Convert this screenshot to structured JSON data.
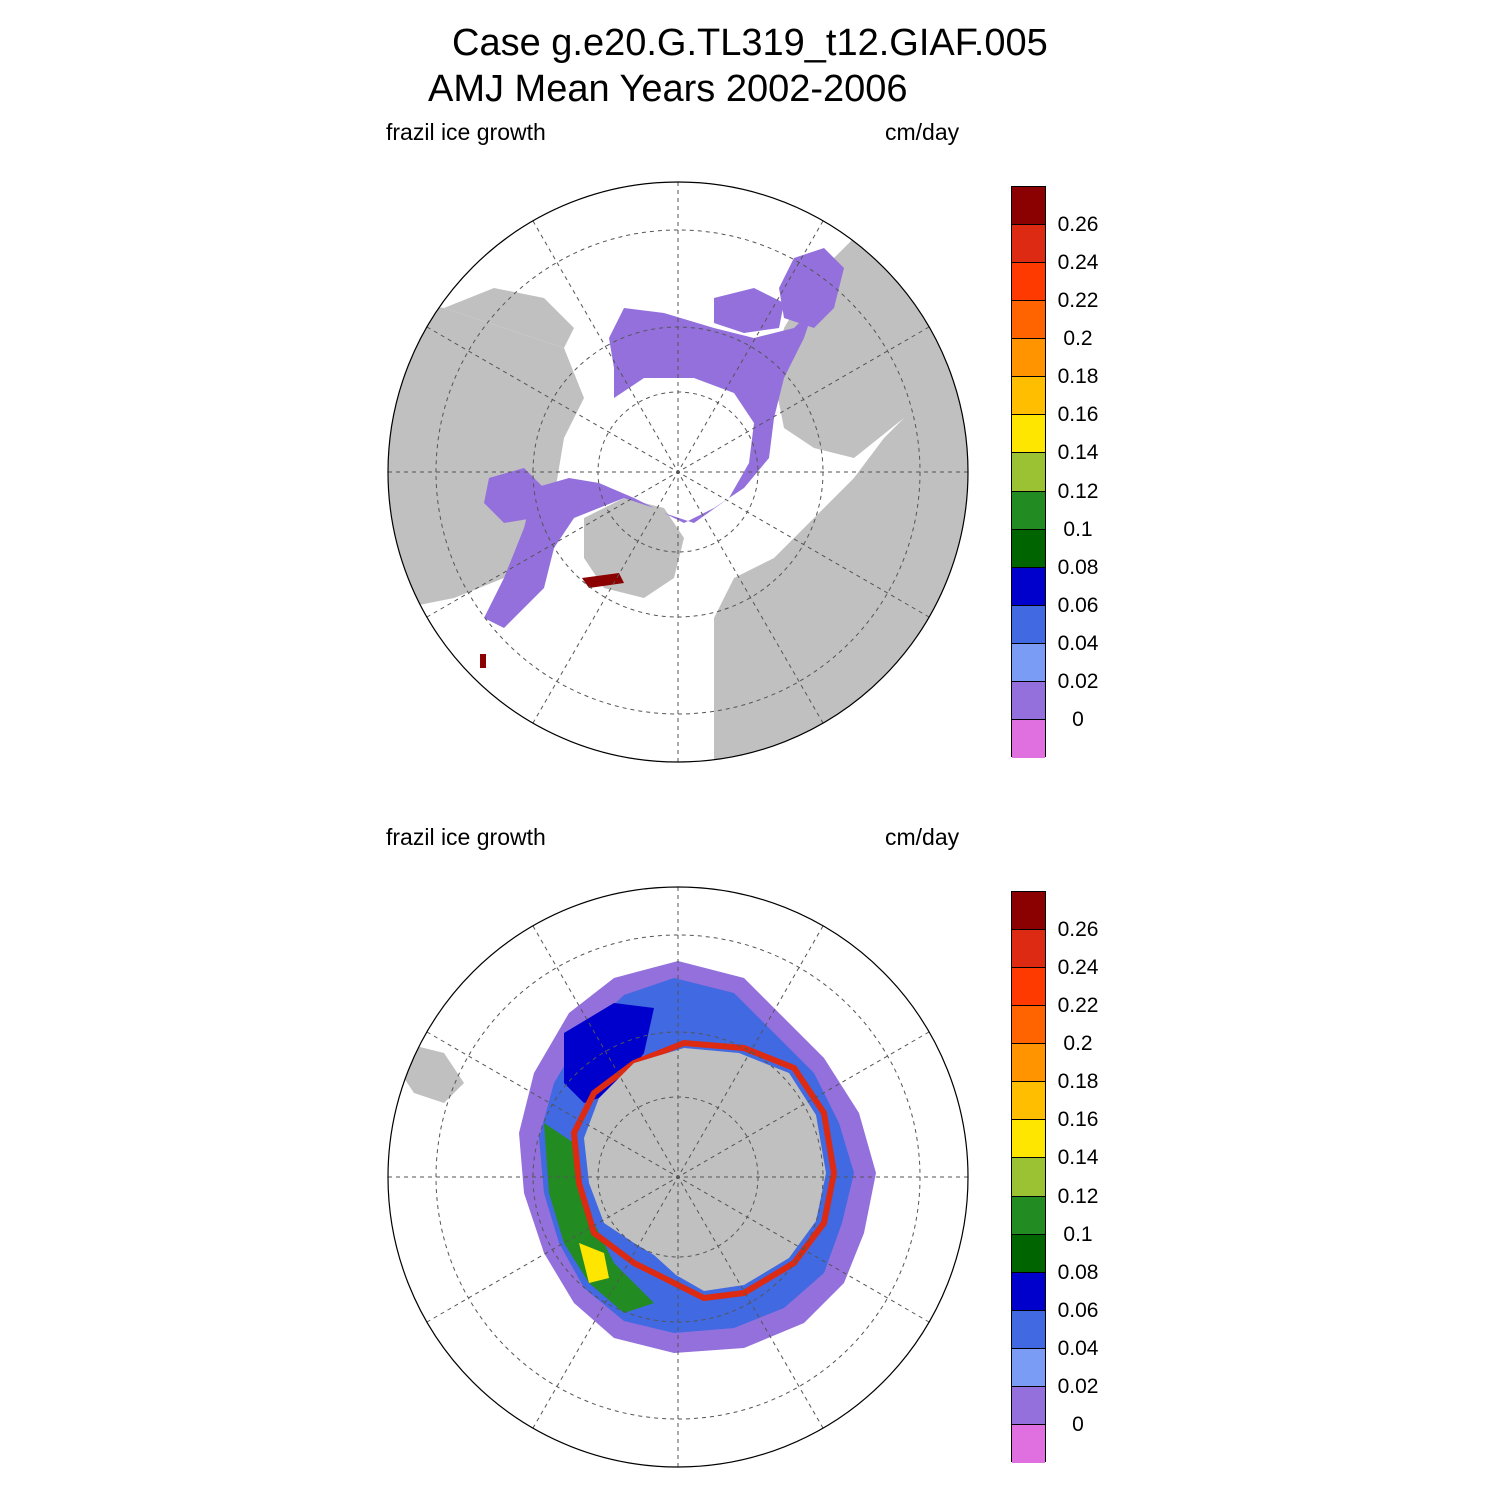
{
  "title": {
    "line1": "Case g.e20.G.TL319_t12.GIAF.005",
    "line2": "AMJ Mean   Years 2002-2006"
  },
  "panels": [
    {
      "name": "north",
      "variable": "frazil ice growth",
      "units": "cm/day"
    },
    {
      "name": "south",
      "variable": "frazil ice growth",
      "units": "cm/day"
    }
  ],
  "colorbar": {
    "labels": [
      "0.26",
      "0.24",
      "0.22",
      "0.2",
      "0.18",
      "0.16",
      "0.14",
      "0.12",
      "0.1",
      "0.08",
      "0.06",
      "0.04",
      "0.02",
      "0"
    ],
    "colors_top_to_bottom": [
      "#8b0000",
      "#dd2a12",
      "#ff3a00",
      "#ff6400",
      "#ff9400",
      "#ffbe00",
      "#ffe600",
      "#9ac232",
      "#228b22",
      "#006400",
      "#0000cd",
      "#4169e1",
      "#7b9cf5",
      "#9370db",
      "#e070e0"
    ]
  },
  "colors": {
    "land": "#c0c0c0",
    "ice_zero": "#9370db",
    "ocean": "#ffffff"
  }
}
